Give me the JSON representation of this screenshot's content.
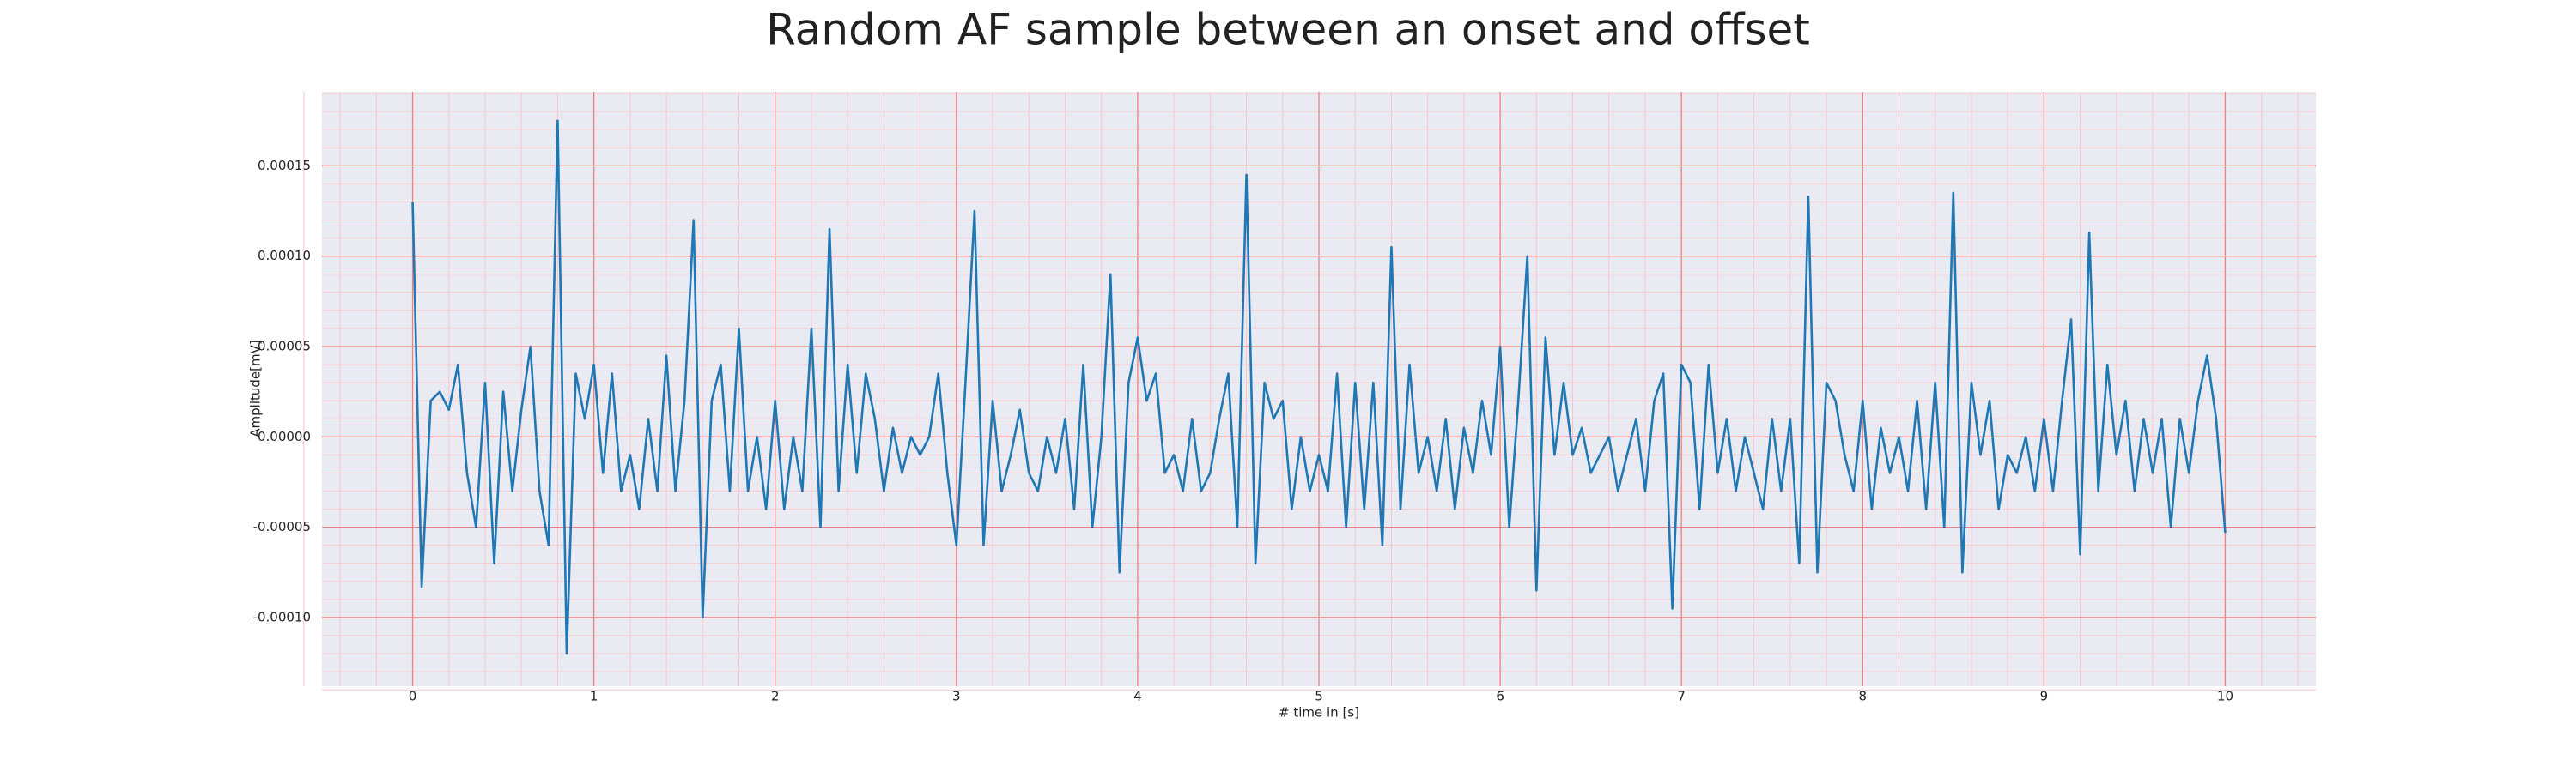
{
  "chart_data": {
    "type": "line",
    "title": "Random AF sample between an onset and offset",
    "xlabel": "# time in [s]",
    "ylabel": "Amplitude[mV]",
    "color": "#1f77b4",
    "background": "#eaeaf2",
    "grid": true,
    "grid_color": "#f08080",
    "minor_grid": true,
    "minor_grid_color": "#f7c6cc",
    "xlim": [
      -0.5,
      10.5
    ],
    "ylim": [
      -0.000138,
      0.000191
    ],
    "xticks": [
      0,
      1,
      2,
      3,
      4,
      5,
      6,
      7,
      8,
      9,
      10
    ],
    "yticks": [
      {
        "value": -0.0001,
        "label": "-0.00010"
      },
      -5e-05,
      {
        "value": 0,
        "label": "0.00000"
      },
      5e-05,
      {
        "value": 0.0001,
        "label": "0.00010"
      },
      0.00015
    ],
    "x": [
      0,
      0.05,
      0.1,
      0.15,
      0.2,
      0.25,
      0.3,
      0.35,
      0.4,
      0.45,
      0.5,
      0.55,
      0.6,
      0.65,
      0.7,
      0.75,
      0.8,
      0.85,
      0.9,
      0.95,
      1,
      1.05,
      1.1,
      1.15,
      1.2,
      1.25,
      1.3,
      1.35,
      1.4,
      1.45,
      1.5,
      1.55,
      1.6,
      1.65,
      1.7,
      1.75,
      1.8,
      1.85,
      1.9,
      1.95,
      2,
      2.05,
      2.1,
      2.15,
      2.2,
      2.25,
      2.3,
      2.35,
      2.4,
      2.45,
      2.5,
      2.55,
      2.6,
      2.65,
      2.7,
      2.75,
      2.8,
      2.85,
      2.9,
      2.95,
      3,
      3.05,
      3.1,
      3.15,
      3.2,
      3.25,
      3.3,
      3.35,
      3.4,
      3.45,
      3.5,
      3.55,
      3.6,
      3.65,
      3.7,
      3.75,
      3.8,
      3.85,
      3.9,
      3.95,
      4,
      4.05,
      4.1,
      4.15,
      4.2,
      4.25,
      4.3,
      4.35,
      4.4,
      4.45,
      4.5,
      4.55,
      4.6,
      4.65,
      4.7,
      4.75,
      4.8,
      4.85,
      4.9,
      4.95,
      5,
      5.05,
      5.1,
      5.15,
      5.2,
      5.25,
      5.3,
      5.35,
      5.4,
      5.45,
      5.5,
      5.55,
      5.6,
      5.65,
      5.7,
      5.75,
      5.8,
      5.85,
      5.9,
      5.95,
      6,
      6.05,
      6.1,
      6.15,
      6.2,
      6.25,
      6.3,
      6.35,
      6.4,
      6.45,
      6.5,
      6.55,
      6.6,
      6.65,
      6.7,
      6.75,
      6.8,
      6.85,
      6.9,
      6.95,
      7,
      7.05,
      7.1,
      7.15,
      7.2,
      7.25,
      7.3,
      7.35,
      7.4,
      7.45,
      7.5,
      7.55,
      7.6,
      7.65,
      7.7,
      7.75,
      7.8,
      7.85,
      7.9,
      7.95,
      8,
      8.05,
      8.1,
      8.15,
      8.2,
      8.25,
      8.3,
      8.35,
      8.4,
      8.45,
      8.5,
      8.55,
      8.6,
      8.65,
      8.7,
      8.75,
      8.8,
      8.85,
      8.9,
      8.95,
      9,
      9.05,
      9.1,
      9.15,
      9.2,
      9.25,
      9.3,
      9.35,
      9.4,
      9.45,
      9.5,
      9.55,
      9.6,
      9.65,
      9.7,
      9.75,
      9.8,
      9.85,
      9.9,
      9.95,
      10
    ],
    "values": [
      0.00013,
      -8.3e-05,
      2e-05,
      2.5e-05,
      1.5e-05,
      4e-05,
      -2e-05,
      -5e-05,
      3e-05,
      -7e-05,
      2.5e-05,
      -3e-05,
      1.5e-05,
      5e-05,
      -3e-05,
      -6e-05,
      0.000175,
      -0.00012,
      3.5e-05,
      1e-05,
      4e-05,
      -2e-05,
      3.5e-05,
      -3e-05,
      -1e-05,
      -4e-05,
      1e-05,
      -3e-05,
      4.5e-05,
      -3e-05,
      2e-05,
      0.00012,
      -0.0001,
      2e-05,
      4e-05,
      -3e-05,
      6e-05,
      -3e-05,
      0,
      -4e-05,
      2e-05,
      -4e-05,
      0,
      -3e-05,
      6e-05,
      -5e-05,
      0.000115,
      -3e-05,
      4e-05,
      -2e-05,
      3.5e-05,
      1e-05,
      -3e-05,
      5e-06,
      -2e-05,
      0,
      -1e-05,
      0,
      3.5e-05,
      -2e-05,
      -6e-05,
      3e-05,
      0.000125,
      -6e-05,
      2e-05,
      -3e-05,
      -1e-05,
      1.5e-05,
      -2e-05,
      -3e-05,
      0,
      -2e-05,
      1e-05,
      -4e-05,
      4e-05,
      -5e-05,
      0,
      9e-05,
      -7.5e-05,
      3e-05,
      5.5e-05,
      2e-05,
      3.5e-05,
      -2e-05,
      -1e-05,
      -3e-05,
      1e-05,
      -3e-05,
      -2e-05,
      1e-05,
      3.5e-05,
      -5e-05,
      0.000145,
      -7e-05,
      3e-05,
      1e-05,
      2e-05,
      -4e-05,
      0,
      -3e-05,
      -1e-05,
      -3e-05,
      3.5e-05,
      -5e-05,
      3e-05,
      -4e-05,
      3e-05,
      -6e-05,
      0.000105,
      -4e-05,
      4e-05,
      -2e-05,
      0,
      -3e-05,
      1e-05,
      -4e-05,
      5e-06,
      -2e-05,
      2e-05,
      -1e-05,
      5e-05,
      -5e-05,
      2e-05,
      0.0001,
      -8.5e-05,
      5.5e-05,
      -1e-05,
      3e-05,
      -1e-05,
      5e-06,
      -2e-05,
      -1e-05,
      0,
      -3e-05,
      -1e-05,
      1e-05,
      -3e-05,
      2e-05,
      3.5e-05,
      -9.5e-05,
      4e-05,
      3e-05,
      -4e-05,
      4e-05,
      -2e-05,
      1e-05,
      -3e-05,
      0,
      -2e-05,
      -4e-05,
      1e-05,
      -3e-05,
      1e-05,
      -7e-05,
      0.000133,
      -7.5e-05,
      3e-05,
      2e-05,
      -1e-05,
      -3e-05,
      2e-05,
      -4e-05,
      5e-06,
      -2e-05,
      0,
      -3e-05,
      2e-05,
      -4e-05,
      3e-05,
      -5e-05,
      0.000135,
      -7.5e-05,
      3e-05,
      -1e-05,
      2e-05,
      -4e-05,
      -1e-05,
      -2e-05,
      0,
      -3e-05,
      1e-05,
      -3e-05,
      2e-05,
      6.5e-05,
      -6.5e-05,
      0.000113,
      -3e-05,
      4e-05,
      -1e-05,
      2e-05,
      -3e-05,
      1e-05,
      -2e-05,
      1e-05,
      -5e-05,
      1e-05,
      -2e-05,
      2e-05,
      4.5e-05,
      1e-05,
      -5.3e-05
    ]
  }
}
